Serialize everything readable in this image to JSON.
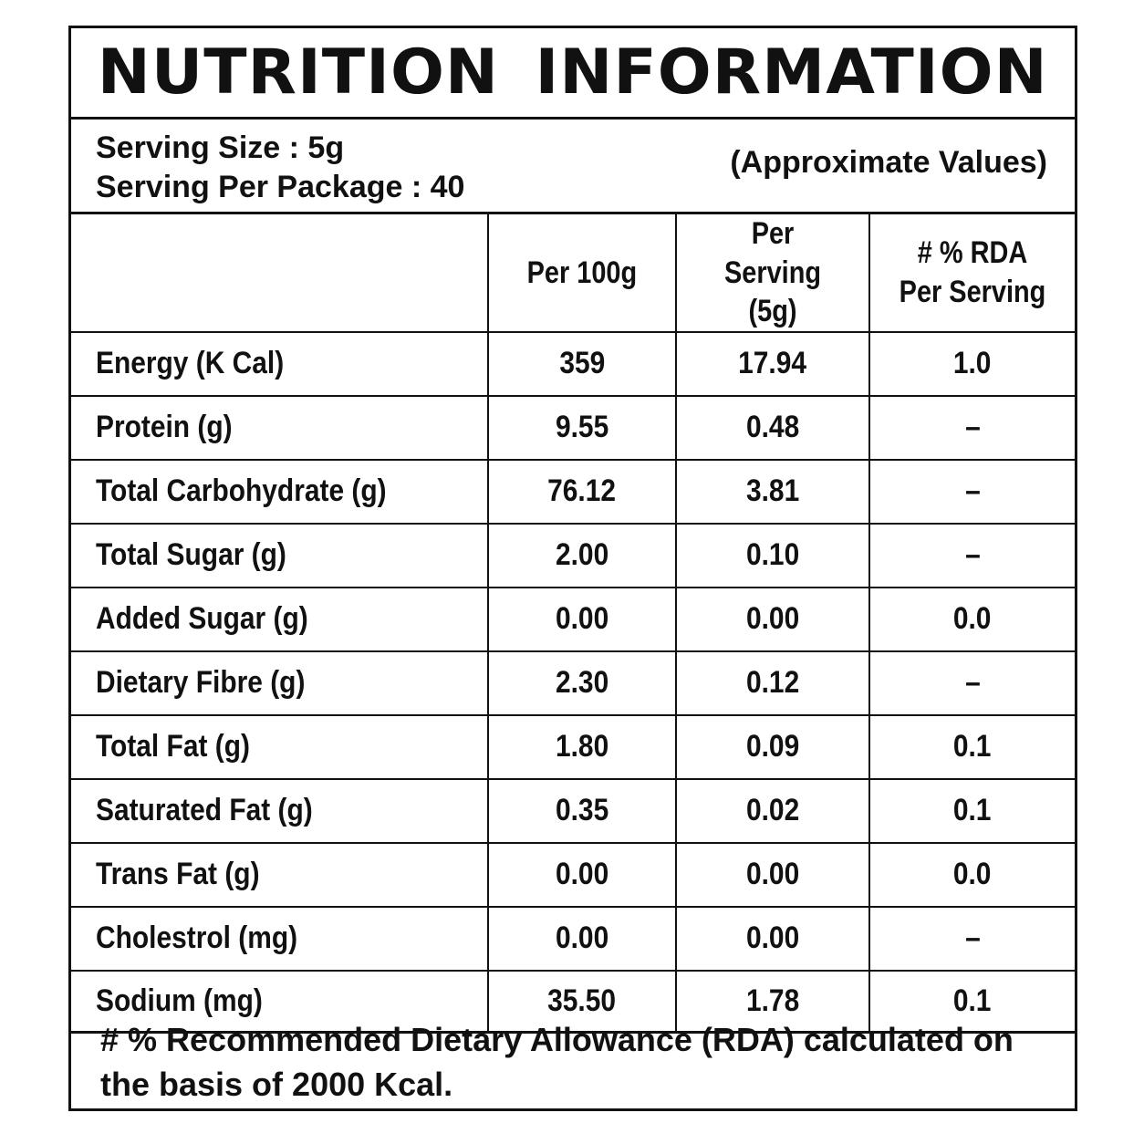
{
  "title": "NUTRITION INFORMATION",
  "serving": {
    "size": "Serving Size : 5g",
    "per_package": "Serving Per Package : 40",
    "note": "(Approximate Values)"
  },
  "table": {
    "headers": [
      "",
      "Per 100g",
      "Per Serving (5g)",
      "# % RDA Per Serving"
    ],
    "rows": [
      [
        "Energy (K Cal)",
        "359",
        "17.94",
        "1.0"
      ],
      [
        "Protein (g)",
        "9.55",
        "0.48",
        "–"
      ],
      [
        "Total Carbohydrate (g)",
        "76.12",
        "3.81",
        "–"
      ],
      [
        "Total Sugar (g)",
        "2.00",
        "0.10",
        "–"
      ],
      [
        "Added Sugar (g)",
        "0.00",
        "0.00",
        "0.0"
      ],
      [
        "Dietary Fibre (g)",
        "2.30",
        "0.12",
        "–"
      ],
      [
        "Total Fat (g)",
        "1.80",
        "0.09",
        "0.1"
      ],
      [
        "Saturated Fat (g)",
        "0.35",
        "0.02",
        "0.1"
      ],
      [
        "Trans Fat (g)",
        "0.00",
        "0.00",
        "0.0"
      ],
      [
        "Cholestrol (mg)",
        "0.00",
        "0.00",
        "–"
      ],
      [
        "Sodium (mg)",
        "35.50",
        "1.78",
        "0.1"
      ]
    ]
  },
  "footnote": "# % Recommended Dietary Allowance (RDA) calculated on the basis of 2000 Kcal."
}
